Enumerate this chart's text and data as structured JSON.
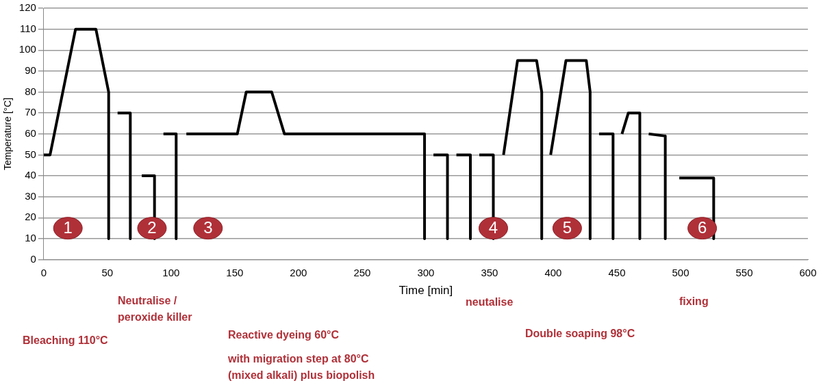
{
  "chart_data": {
    "type": "line",
    "xlabel": "Time [min]",
    "ylabel": "Temperature [°C]",
    "series": [
      {
        "color": "#000000",
        "x": [
          0,
          5,
          25,
          41,
          51,
          51,
          54,
          58,
          68,
          68,
          72,
          77,
          87,
          87,
          90,
          94,
          104,
          104,
          108,
          112,
          152,
          159,
          179,
          189,
          299,
          299,
          302,
          306,
          317,
          317,
          320,
          324,
          335,
          335,
          338,
          342,
          353,
          353,
          356,
          361,
          372,
          387,
          391,
          391,
          394,
          398,
          410,
          426,
          429,
          429,
          432,
          436,
          447,
          447,
          450,
          454,
          459,
          468,
          468,
          471,
          475,
          488,
          488,
          493,
          499,
          526,
          526
        ],
        "values": [
          50,
          50,
          110,
          110,
          80,
          10,
          null,
          70,
          70,
          10,
          null,
          40,
          40,
          10,
          null,
          60,
          60,
          10,
          null,
          60,
          60,
          80,
          80,
          60,
          60,
          10,
          null,
          50,
          50,
          10,
          null,
          50,
          50,
          10,
          null,
          50,
          50,
          10,
          null,
          50,
          95,
          95,
          80,
          10,
          null,
          50,
          95,
          95,
          80,
          10,
          null,
          60,
          60,
          10,
          null,
          60,
          70,
          70,
          10,
          null,
          60,
          59,
          10,
          null,
          39,
          39,
          10
        ]
      }
    ],
    "xlim": [
      0,
      600
    ],
    "xticks": [
      0,
      50,
      100,
      150,
      200,
      250,
      300,
      350,
      400,
      450,
      500,
      550,
      600
    ],
    "ylim": [
      0,
      120
    ],
    "yticks": [
      0,
      10,
      20,
      30,
      40,
      50,
      60,
      70,
      80,
      90,
      100,
      110,
      120
    ],
    "grid": "y",
    "marker": "none",
    "line_style": "solid",
    "annotations": [
      {
        "text": "1",
        "x": 19,
        "y": 15
      },
      {
        "text": "2",
        "x": 85,
        "y": 15
      },
      {
        "text": "3",
        "x": 129,
        "y": 15
      },
      {
        "text": "4",
        "x": 353,
        "y": 15
      },
      {
        "text": "5",
        "x": 411,
        "y": 15
      },
      {
        "text": "6",
        "x": 517,
        "y": 15
      },
      "Neutralise /\nperoxide killer",
      "Bleaching 110°C",
      "Reactive dyeing 60°C",
      "with migration step at 80°C\n(mixed alkali) plus biopolish",
      "neutalise",
      "Double soaping 98°C",
      "fixing"
    ]
  }
}
